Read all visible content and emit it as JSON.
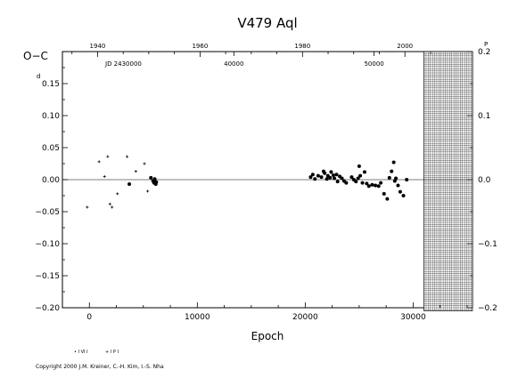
{
  "chart_data": {
    "type": "scatter",
    "title": "V479  Aql",
    "ylabel": "O−C",
    "ylabel_unit_left": "d",
    "ylabel_unit_right": "P",
    "xlabel": "Epoch",
    "xlim": [
      -2500,
      35500
    ],
    "ylim": [
      -0.2,
      0.2
    ],
    "x_ticks": [
      0,
      10000,
      20000,
      30000
    ],
    "y_ticks": [
      -0.2,
      -0.15,
      -0.1,
      -0.05,
      0.0,
      0.05,
      0.1,
      0.15
    ],
    "y_tick_labels": [
      "−0.20",
      "−0.15",
      "−0.10",
      "−0.05",
      "0.00",
      "0.05",
      "0.10",
      "0.15"
    ],
    "top_year_ticks": [
      1940,
      1960,
      1980,
      2000
    ],
    "jd_label": "JD 2430000",
    "jd_ticks": [
      40000,
      50000
    ],
    "jd_ticks_labels": [
      "40000",
      "50000"
    ],
    "right_ticks": [
      -0.2,
      -0.1,
      0.0,
      0.1,
      0.2
    ],
    "right_tick_labels": [
      "−0.2",
      "−0.1",
      "0.0",
      "0.1",
      "0.2"
    ],
    "future_region_start": 31000,
    "grid": false,
    "legend_placement": "bottom-left",
    "legend_entries": [
      "• I VI I",
      "+ I P I"
    ],
    "series": [
      {
        "marker": "plus",
        "x": [
          -200,
          900,
          1400,
          1700,
          1900,
          2100,
          2600,
          3500,
          4300,
          5100,
          5400
        ],
        "y": [
          -0.043,
          0.028,
          0.005,
          0.036,
          -0.038,
          -0.043,
          -0.022,
          0.036,
          0.013,
          0.025,
          -0.018
        ]
      },
      {
        "marker": "dot",
        "x": [
          3700,
          5700,
          5900,
          6000,
          6050,
          6100,
          6150,
          6200,
          20500,
          20700,
          20900,
          21200,
          21500,
          21700,
          21800,
          22000,
          22100,
          22300,
          22400,
          22600,
          22700,
          22900,
          23000,
          23200,
          23400,
          23600,
          23800,
          24300,
          24500,
          24700,
          24900,
          25000,
          25100,
          25300,
          25500,
          25700,
          25900,
          26200,
          26500,
          26800,
          27000,
          27300,
          27600,
          27800,
          28000,
          28200,
          28300,
          28400,
          28600,
          28800,
          29100,
          29400
        ],
        "y": [
          -0.007,
          0.003,
          -0.002,
          -0.005,
          0.001,
          -0.003,
          -0.007,
          -0.004,
          0.004,
          0.008,
          0.001,
          0.006,
          0.004,
          0.013,
          0.01,
          0.001,
          0.006,
          0.003,
          0.012,
          0.007,
          0.002,
          0.008,
          -0.003,
          0.005,
          0.002,
          -0.002,
          -0.005,
          0.004,
          0.0,
          -0.003,
          0.002,
          0.021,
          0.006,
          -0.005,
          0.012,
          -0.006,
          -0.01,
          -0.008,
          -0.009,
          -0.01,
          -0.005,
          -0.022,
          -0.03,
          0.003,
          0.013,
          0.027,
          -0.002,
          0.002,
          -0.009,
          -0.019,
          -0.025,
          0.0
        ]
      }
    ]
  },
  "copyright": "Copyright 2000 J.M. Kreiner, C.-H. Kim, I.-S. Nha"
}
